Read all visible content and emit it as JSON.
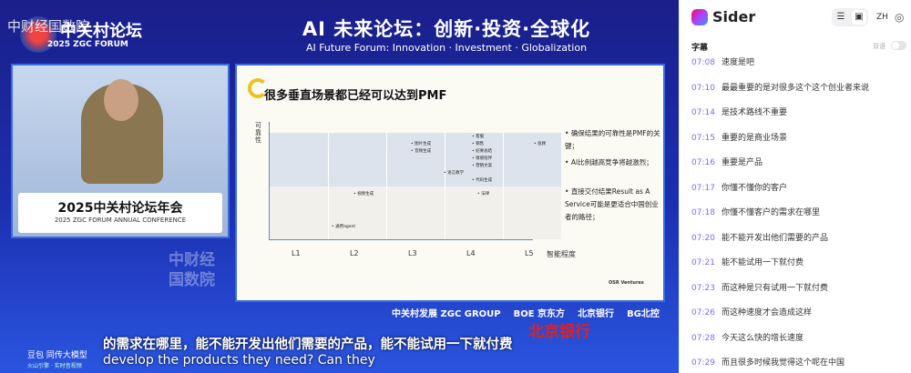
{
  "video": {
    "watermark": "中财经国数院",
    "forum_logo_cn": "中关村论坛",
    "forum_logo_en": "2025 ZGC FORUM",
    "title_cn": "AI 未来论坛：创新·投资·全球化",
    "title_en": "AI Future Forum: Innovation · Investment · Globalization",
    "podium_cn": "2025中关村论坛年会",
    "podium_en": "2025 ZGC FORUM ANNUAL CONFERENCE",
    "corner_watermark": "中财经国数院",
    "slide": {
      "title": "很多垂直场景都已经可以达到PMF",
      "y_label": "可靠性",
      "x_label": "智能程度",
      "levels": [
        "L1",
        "L2",
        "L3",
        "L4",
        "L5"
      ],
      "items": [
        {
          "label": "图片生成",
          "level": "L3",
          "zone": "high"
        },
        {
          "label": "音频生成",
          "level": "L3",
          "zone": "high"
        },
        {
          "label": "客服",
          "level": "L4",
          "zone": "high"
        },
        {
          "label": "销售",
          "level": "L4",
          "zone": "high"
        },
        {
          "label": "纪要总结",
          "level": "L4",
          "zone": "high"
        },
        {
          "label": "情感陪伴",
          "level": "L4",
          "zone": "high"
        },
        {
          "label": "营销文案",
          "level": "L4",
          "zone": "high"
        },
        {
          "label": "语言教学",
          "level": "L3-L4",
          "zone": "high"
        },
        {
          "label": "代码生成",
          "level": "L4",
          "zone": "high"
        },
        {
          "label": "投顾",
          "level": "L5",
          "zone": "high"
        },
        {
          "label": "视频生成",
          "level": "L2",
          "zone": "low"
        },
        {
          "label": "法律",
          "level": "L4",
          "zone": "low"
        },
        {
          "label": "通用agent",
          "level": "L1-L2",
          "zone": "low"
        }
      ],
      "bullets": [
        "确保结果的可靠性是PMF的关键；",
        "AI比例越高竞争将越激烈；",
        "直接交付结果Result as A Service可能是更适合中国创业者的路径；"
      ],
      "footer": "OSR Ventures"
    },
    "sponsors": [
      "中关村发展 ZGC GROUP",
      "BOE 京东方",
      "北京银行",
      "BG北控"
    ],
    "bank_overlay": "北京银行",
    "llm_brand": "豆包 同传大模型",
    "llm_tagline": "火山引擎 · 实时音视频",
    "subtitle_cn": "的需求在哪里，能不能开发出他们需要的产品，能不能试用一下就付费",
    "subtitle_en": "develop the products they need? Can they"
  },
  "sidebar": {
    "app_name": "Sider",
    "lang": "ZH",
    "section_title": "字幕",
    "bilingual_label": "双语",
    "bilingual_on": false,
    "accent": "#7a6df0",
    "transcript": [
      {
        "time": "07:08",
        "text": "速度是吧"
      },
      {
        "time": "07:10",
        "text": "最最重要的是对很多这个这个创业者来说"
      },
      {
        "time": "07:14",
        "text": "是技术路线不重要"
      },
      {
        "time": "07:15",
        "text": "重要的是商业场景"
      },
      {
        "time": "07:16",
        "text": "重要是产品"
      },
      {
        "time": "07:17",
        "text": "你懂不懂你的客户"
      },
      {
        "time": "07:18",
        "text": "你懂不懂客户的需求在哪里"
      },
      {
        "time": "07:20",
        "text": "能不能开发出他们需要的产品"
      },
      {
        "time": "07:21",
        "text": "能不能试用一下就付费"
      },
      {
        "time": "07:23",
        "text": "而这种是只有试用一下就付费"
      },
      {
        "time": "07:26",
        "text": "而这种速度才会造成这样"
      },
      {
        "time": "07:28",
        "text": "今天这么快的增长速度"
      },
      {
        "time": "07:29",
        "text": "而且很多时候我觉得这个呢在中国"
      }
    ]
  }
}
